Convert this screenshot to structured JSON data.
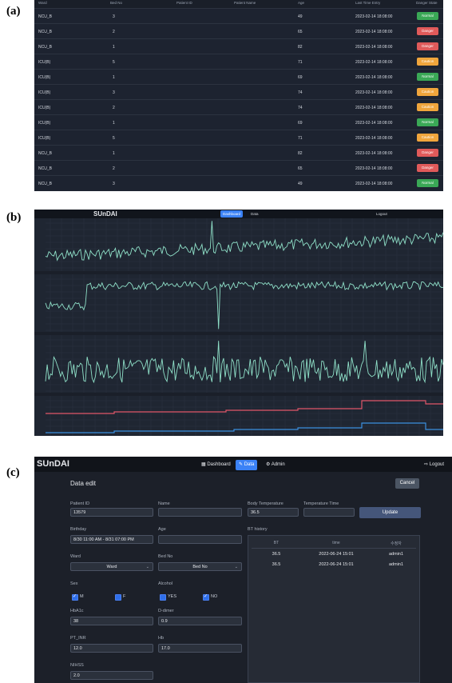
{
  "panel_labels": {
    "a": "(a)",
    "b": "(b)",
    "c": "(c)"
  },
  "table": {
    "headers": [
      "Ward",
      "Bed No",
      "Patient ID",
      "Patient Name",
      "Age",
      "Last Time Entry",
      "Danger State"
    ],
    "rows": [
      {
        "ward": "NCU_B",
        "bed": "3",
        "age": "49",
        "time": "2023-02-14 18:08:00",
        "state": "Normal",
        "color": "#3aa856"
      },
      {
        "ward": "NCU_B",
        "bed": "2",
        "age": "65",
        "time": "2023-02-14 18:08:00",
        "state": "Danger",
        "color": "#e05a5a"
      },
      {
        "ward": "NCU_B",
        "bed": "1",
        "age": "82",
        "time": "2023-02-14 18:08:00",
        "state": "Danger",
        "color": "#e05a5a"
      },
      {
        "ward": "ICU(B)",
        "bed": "5",
        "age": "71",
        "time": "2023-02-14 18:08:00",
        "state": "Caution",
        "color": "#f0a53c"
      },
      {
        "ward": "ICU(B)",
        "bed": "1",
        "age": "69",
        "time": "2023-02-14 18:08:00",
        "state": "Normal",
        "color": "#3aa856"
      },
      {
        "ward": "ICU(B)",
        "bed": "3",
        "age": "74",
        "time": "2023-02-14 18:08:00",
        "state": "Caution",
        "color": "#f0a53c"
      },
      {
        "ward": "ICU(B)",
        "bed": "2",
        "age": "74",
        "time": "2023-02-14 18:08:00",
        "state": "Caution",
        "color": "#f0a53c"
      },
      {
        "ward": "ICU(B)",
        "bed": "1",
        "age": "69",
        "time": "2023-02-14 18:08:00",
        "state": "Normal",
        "color": "#3aa856"
      },
      {
        "ward": "ICU(B)",
        "bed": "5",
        "age": "71",
        "time": "2023-02-14 18:08:00",
        "state": "Caution",
        "color": "#f0a53c"
      },
      {
        "ward": "NCU_B",
        "bed": "1",
        "age": "82",
        "time": "2023-02-14 18:08:00",
        "state": "Danger",
        "color": "#e05a5a"
      },
      {
        "ward": "NCU_B",
        "bed": "2",
        "age": "65",
        "time": "2023-02-14 18:08:00",
        "state": "Danger",
        "color": "#e05a5a"
      },
      {
        "ward": "NCU_B",
        "bed": "3",
        "age": "49",
        "time": "2023-02-14 18:08:00",
        "state": "Normal",
        "color": "#3aa856"
      }
    ]
  },
  "dashboard": {
    "brand": "SUnDAI",
    "nav_dashboard": "Dashboard",
    "nav_data": "Data",
    "nav_logout": "Logout",
    "line_color": "#8fe0c8",
    "red_color": "#e0566a",
    "blue_color": "#3b8fe0"
  },
  "form": {
    "brand": "SUnDAI",
    "nav": {
      "dashboard": "Dashboard",
      "data": "Data",
      "admin": "Admin",
      "logout": "Logout"
    },
    "title": "Data edit",
    "cancel": "Cancel",
    "update": "Update",
    "labels": {
      "patient_id": "Patient ID",
      "name": "Name",
      "body_temp": "Body Temperature",
      "temp_time": "Temperature Time",
      "birthday": "Birthday",
      "age": "Age",
      "bt_history": "BT history",
      "ward": "Ward",
      "bed_no": "Bed No",
      "sex": "Sex",
      "alcohol": "Alcohol",
      "hba1c": "HbA1c",
      "d_dimer": "D-dimer",
      "pt_inr": "PT_INR",
      "hb": "Hb",
      "nihss": "NIHSS"
    },
    "values": {
      "patient_id": "13579",
      "name": "",
      "body_temp": "36.5",
      "temp_time": "",
      "birthday": "8/30 11:00 AM - 8/31 07:00 PM",
      "age": "",
      "ward": "Ward",
      "bed_no": "Bed No",
      "hba1c": "38",
      "d_dimer": "0.9",
      "pt_inr": "12.0",
      "hb": "17.0",
      "nihss": "2.0"
    },
    "sex_options": {
      "m": "M",
      "f": "F"
    },
    "alcohol_options": {
      "yes": "YES",
      "no": "NO"
    },
    "history": {
      "headers": [
        "BT",
        "time",
        "수정자"
      ],
      "rows": [
        [
          "36.5",
          "2022-06-24 15:01",
          "admin1"
        ],
        [
          "36.5",
          "2022-06-24 15:01",
          "admin1"
        ]
      ]
    }
  }
}
